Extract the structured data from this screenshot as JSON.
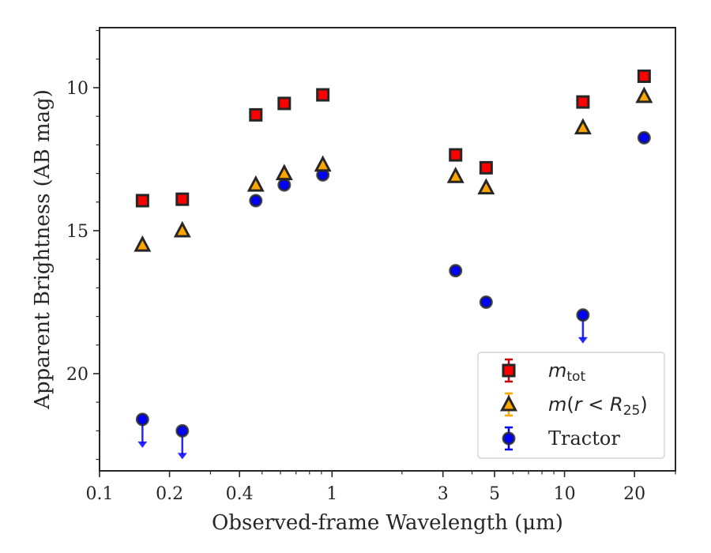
{
  "chart_data": {
    "type": "scatter",
    "title": "",
    "xlabel": "Observed-frame Wavelength (μm)",
    "ylabel": "Apparent Brightness (AB mag)",
    "xscale": "log",
    "xlim": [
      0.1,
      30
    ],
    "ylim": [
      23.4,
      7.9
    ],
    "y_inverted": true,
    "grid": false,
    "x_ticks": [
      0.1,
      0.2,
      0.4,
      1,
      3,
      5,
      10,
      20
    ],
    "x_tick_labels": [
      "0.1",
      "0.2",
      "0.4",
      "1",
      "3",
      "5",
      "10",
      "20"
    ],
    "y_ticks": [
      10,
      15,
      20
    ],
    "y_tick_labels": [
      "10",
      "15",
      "20"
    ],
    "legend_position": "lower right",
    "series": [
      {
        "name": "m_tot",
        "marker": "square",
        "face_color": "#ff0000",
        "edge_color": "#262626",
        "errorbar_color": "#cc0000",
        "points": [
          {
            "x": 0.153,
            "y": 13.95
          },
          {
            "x": 0.227,
            "y": 13.9
          },
          {
            "x": 0.47,
            "y": 10.95
          },
          {
            "x": 0.623,
            "y": 10.55
          },
          {
            "x": 0.913,
            "y": 10.25
          },
          {
            "x": 3.4,
            "y": 12.35
          },
          {
            "x": 4.6,
            "y": 12.8
          },
          {
            "x": 12.0,
            "y": 10.5
          },
          {
            "x": 22.0,
            "y": 9.6
          }
        ]
      },
      {
        "name": "m(r < R25)",
        "marker": "triangle",
        "face_color": "#ffa500",
        "edge_color": "#262626",
        "errorbar_color": "#ffa500",
        "points": [
          {
            "x": 0.153,
            "y": 15.5
          },
          {
            "x": 0.227,
            "y": 15.0
          },
          {
            "x": 0.47,
            "y": 13.4
          },
          {
            "x": 0.623,
            "y": 13.0
          },
          {
            "x": 0.913,
            "y": 12.7
          },
          {
            "x": 3.4,
            "y": 13.1
          },
          {
            "x": 4.6,
            "y": 13.5
          },
          {
            "x": 12.0,
            "y": 11.4
          },
          {
            "x": 22.0,
            "y": 10.3
          }
        ]
      },
      {
        "name": "Tractor",
        "marker": "circle",
        "face_color": "#0000ff",
        "edge_color": "#262626",
        "errorbar_color": "#0000ff",
        "points": [
          {
            "x": 0.153,
            "y": 21.6,
            "upper_limit": true
          },
          {
            "x": 0.227,
            "y": 22.0,
            "upper_limit": true
          },
          {
            "x": 0.47,
            "y": 13.95
          },
          {
            "x": 0.623,
            "y": 13.4
          },
          {
            "x": 0.913,
            "y": 13.05
          },
          {
            "x": 3.4,
            "y": 16.4
          },
          {
            "x": 4.6,
            "y": 17.5
          },
          {
            "x": 12.0,
            "y": 17.95,
            "upper_limit": true
          },
          {
            "x": 22.0,
            "y": 11.75
          }
        ]
      }
    ]
  }
}
